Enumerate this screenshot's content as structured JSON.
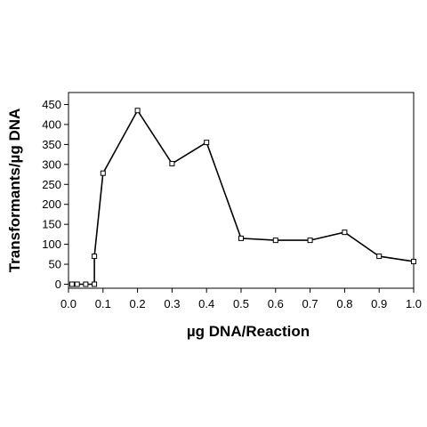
{
  "chart_data": {
    "type": "line",
    "xlabel": "µg DNA/Reaction",
    "ylabel": "Transformants/µg DNA",
    "xlim": [
      0,
      1.0
    ],
    "ylim": [
      -10,
      480
    ],
    "xticks": [
      "0.0",
      "0.1",
      "0.2",
      "0.3",
      "0.4",
      "0.5",
      "0.6",
      "0.7",
      "0.8",
      "0.9",
      "1.0"
    ],
    "yticks": [
      "0",
      "50",
      "100",
      "150",
      "200",
      "250",
      "300",
      "350",
      "400",
      "450"
    ],
    "grid": false,
    "series": [
      {
        "x": [
          0.01,
          0.025,
          0.05,
          0.075,
          0.075,
          0.1,
          0.2,
          0.3,
          0.4,
          0.5,
          0.6,
          0.7,
          0.8,
          0.9,
          1.0
        ],
        "y": [
          0,
          0,
          0,
          0,
          70,
          278,
          435,
          302,
          355,
          115,
          110,
          110,
          130,
          70,
          57
        ]
      }
    ]
  }
}
